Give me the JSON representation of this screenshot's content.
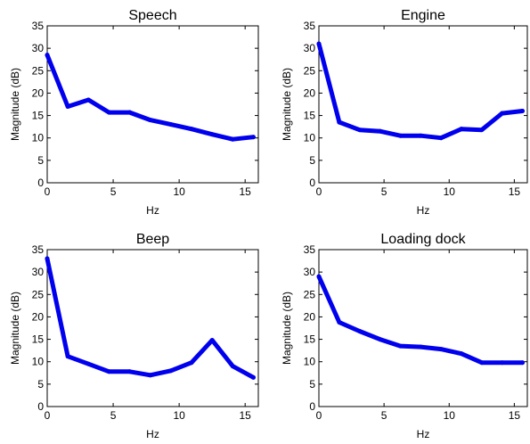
{
  "chart_data": [
    {
      "type": "line",
      "title": "Speech",
      "xlabel": "Hz",
      "ylabel": "Magnitude (dB)",
      "xlim": [
        0,
        16
      ],
      "ylim": [
        0,
        35
      ],
      "xticks": [
        0,
        5,
        10,
        15
      ],
      "yticks": [
        0,
        5,
        10,
        15,
        20,
        25,
        30,
        35
      ],
      "x": [
        0,
        1.5625,
        3.125,
        4.6875,
        6.25,
        7.8125,
        9.375,
        10.9375,
        12.5,
        14.0625,
        15.625
      ],
      "series": [
        {
          "values": [
            28.5,
            17.0,
            18.5,
            15.7,
            15.7,
            14.0,
            13.0,
            12.0,
            10.8,
            9.7,
            10.2
          ]
        }
      ]
    },
    {
      "type": "line",
      "title": "Engine",
      "xlabel": "Hz",
      "ylabel": "Magnitude (dB)",
      "xlim": [
        0,
        16
      ],
      "ylim": [
        0,
        35
      ],
      "xticks": [
        0,
        5,
        10,
        15
      ],
      "yticks": [
        0,
        5,
        10,
        15,
        20,
        25,
        30,
        35
      ],
      "x": [
        0,
        1.5625,
        3.125,
        4.6875,
        6.25,
        7.8125,
        9.375,
        10.9375,
        12.5,
        14.0625,
        15.625
      ],
      "series": [
        {
          "values": [
            31.0,
            13.5,
            11.8,
            11.5,
            10.5,
            10.5,
            10.0,
            12.0,
            11.8,
            15.5,
            16.0
          ]
        }
      ]
    },
    {
      "type": "line",
      "title": "Beep",
      "xlabel": "Hz",
      "ylabel": "Magnitude (dB)",
      "xlim": [
        0,
        16
      ],
      "ylim": [
        0,
        35
      ],
      "xticks": [
        0,
        5,
        10,
        15
      ],
      "yticks": [
        0,
        5,
        10,
        15,
        20,
        25,
        30,
        35
      ],
      "x": [
        0,
        1.5625,
        3.125,
        4.6875,
        6.25,
        7.8125,
        9.375,
        10.9375,
        12.5,
        14.0625,
        15.625
      ],
      "series": [
        {
          "values": [
            33.0,
            11.2,
            9.5,
            7.8,
            7.8,
            7.0,
            8.0,
            9.8,
            14.8,
            9.0,
            6.5
          ]
        }
      ]
    },
    {
      "type": "line",
      "title": "Loading dock",
      "xlabel": "Hz",
      "ylabel": "Magnitude (dB)",
      "xlim": [
        0,
        16
      ],
      "ylim": [
        0,
        35
      ],
      "xticks": [
        0,
        5,
        10,
        15
      ],
      "yticks": [
        0,
        5,
        10,
        15,
        20,
        25,
        30,
        35
      ],
      "x": [
        0,
        1.5625,
        3.125,
        4.6875,
        6.25,
        7.8125,
        9.375,
        10.9375,
        12.5,
        14.0625,
        15.625
      ],
      "series": [
        {
          "values": [
            29.0,
            18.8,
            16.8,
            15.0,
            13.5,
            13.3,
            12.8,
            11.8,
            9.8,
            9.8,
            9.8
          ]
        }
      ]
    }
  ],
  "style": {
    "line_color": "#0000ee",
    "axis_color": "#000000",
    "background": "#ffffff"
  }
}
